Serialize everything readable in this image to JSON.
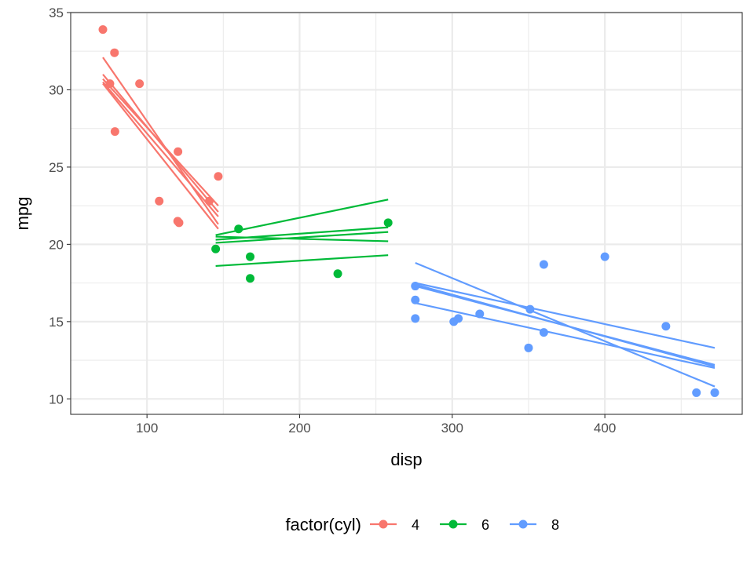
{
  "chart_data": {
    "type": "scatter",
    "xlabel": "disp",
    "ylabel": "mpg",
    "xlim": [
      50,
      490
    ],
    "ylim": [
      9,
      35
    ],
    "x_ticks": [
      100,
      200,
      300,
      400
    ],
    "y_ticks": [
      10,
      15,
      20,
      25,
      30,
      35
    ],
    "grid": true,
    "legend": {
      "title": "factor(cyl)",
      "position": "bottom"
    },
    "series": [
      {
        "name": "4",
        "color": "#F8766D",
        "points": [
          [
            71.1,
            33.9
          ],
          [
            78.7,
            32.4
          ],
          [
            75.7,
            30.4
          ],
          [
            95.1,
            30.4
          ],
          [
            79.0,
            27.3
          ],
          [
            120.3,
            26.0
          ],
          [
            146.7,
            24.4
          ],
          [
            108.0,
            22.8
          ],
          [
            140.8,
            22.8
          ],
          [
            120.1,
            21.5
          ],
          [
            121.0,
            21.4
          ]
        ],
        "lines": [
          [
            [
              71.1,
              32.1
            ],
            [
              146.7,
              21.3
            ]
          ],
          [
            [
              71.1,
              31.0
            ],
            [
              146.7,
              22.1
            ]
          ],
          [
            [
              71.1,
              30.7
            ],
            [
              146.7,
              22.5
            ]
          ],
          [
            [
              71.1,
              30.5
            ],
            [
              146.7,
              21.8
            ]
          ],
          [
            [
              71.1,
              30.4
            ],
            [
              146.7,
              21.0
            ]
          ]
        ]
      },
      {
        "name": "6",
        "color": "#00BA38",
        "points": [
          [
            160.0,
            21.0
          ],
          [
            258.0,
            21.4
          ],
          [
            225.0,
            18.1
          ],
          [
            167.6,
            19.2
          ],
          [
            167.6,
            17.8
          ],
          [
            145.0,
            19.7
          ]
        ],
        "lines": [
          [
            [
              145.0,
              20.6
            ],
            [
              258.0,
              22.9
            ]
          ],
          [
            [
              145.0,
              20.3
            ],
            [
              258.0,
              21.1
            ]
          ],
          [
            [
              145.0,
              20.1
            ],
            [
              258.0,
              20.8
            ]
          ],
          [
            [
              145.0,
              20.5
            ],
            [
              258.0,
              20.2
            ]
          ],
          [
            [
              145.0,
              18.6
            ],
            [
              258.0,
              19.3
            ]
          ]
        ]
      },
      {
        "name": "8",
        "color": "#619CFF",
        "points": [
          [
            360.0,
            18.7
          ],
          [
            360.0,
            14.3
          ],
          [
            275.8,
            16.4
          ],
          [
            275.8,
            17.3
          ],
          [
            275.8,
            15.2
          ],
          [
            472.0,
            10.4
          ],
          [
            460.0,
            10.4
          ],
          [
            440.0,
            14.7
          ],
          [
            318.0,
            15.5
          ],
          [
            304.0,
            15.2
          ],
          [
            350.0,
            13.3
          ],
          [
            400.0,
            19.2
          ],
          [
            351.0,
            15.8
          ],
          [
            301.0,
            15.0
          ]
        ],
        "lines": [
          [
            [
              275.8,
              18.8
            ],
            [
              472.0,
              10.8
            ]
          ],
          [
            [
              275.8,
              17.4
            ],
            [
              472.0,
              12.1
            ]
          ],
          [
            [
              275.8,
              17.3
            ],
            [
              472.0,
              12.2
            ]
          ],
          [
            [
              275.8,
              17.5
            ],
            [
              472.0,
              13.3
            ]
          ],
          [
            [
              275.8,
              16.2
            ],
            [
              472.0,
              12.0
            ]
          ]
        ]
      }
    ]
  }
}
